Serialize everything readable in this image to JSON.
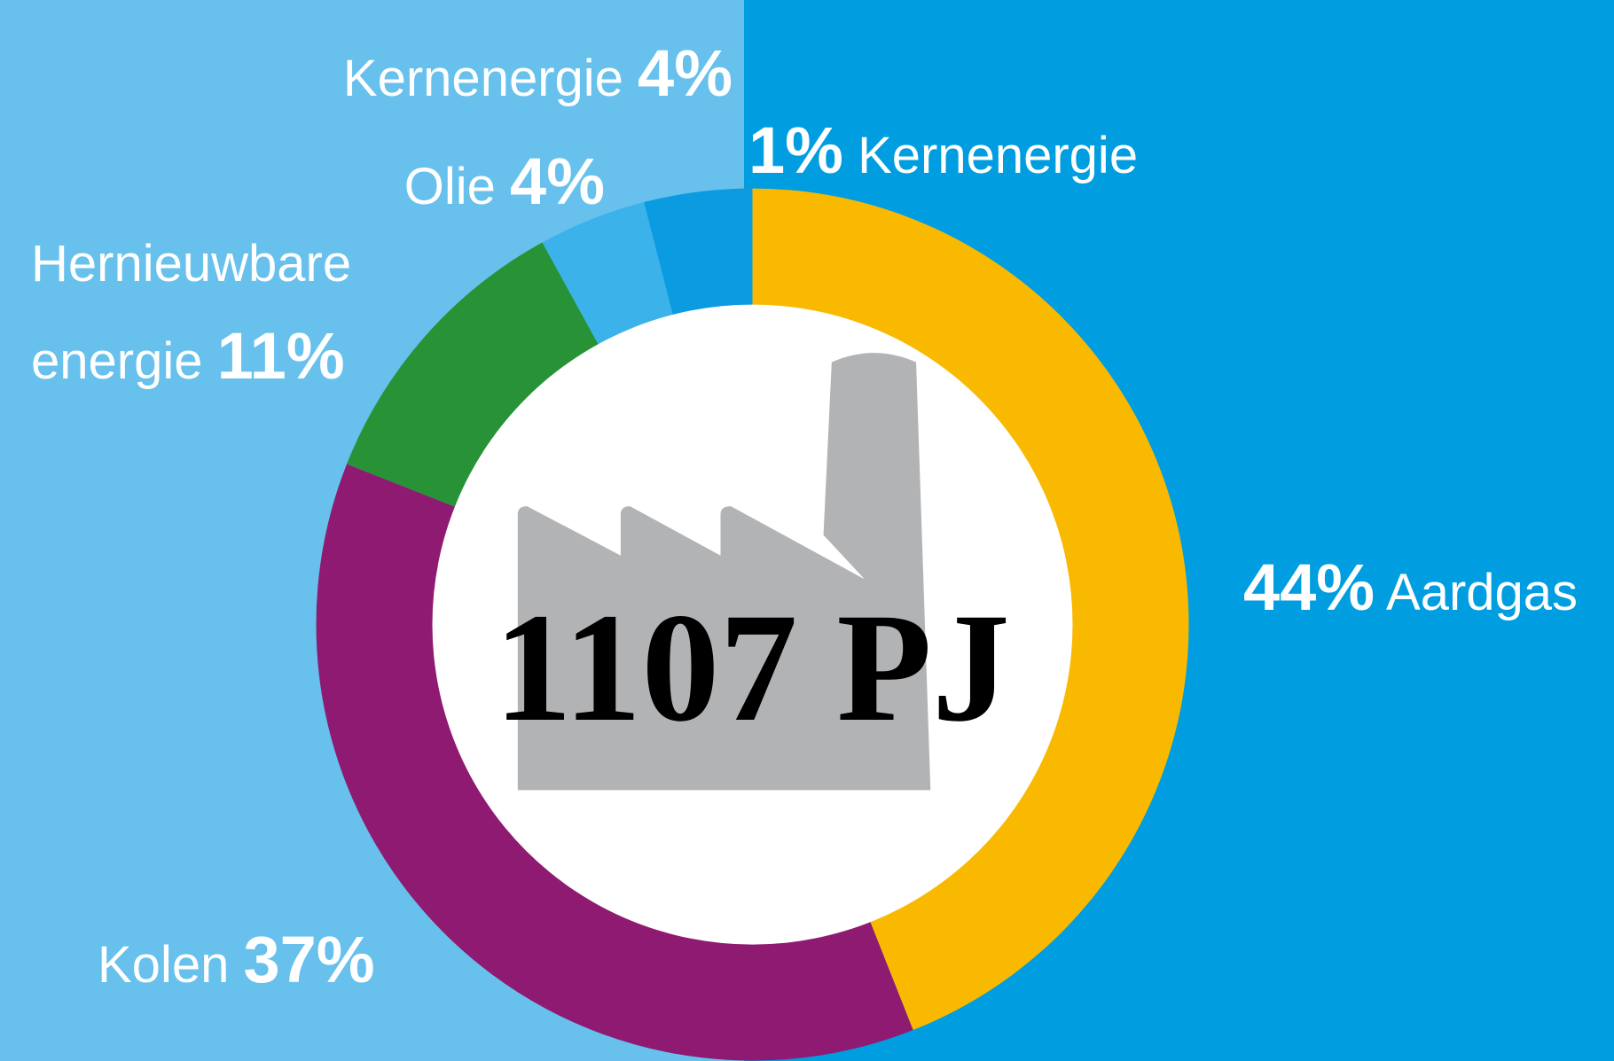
{
  "chart_data": {
    "type": "donut",
    "categories": [
      "Kernenergie",
      "Aardgas",
      "Kolen",
      "Hernieuwbare energie",
      "Olie",
      "Kernenergie"
    ],
    "values": [
      1,
      44,
      37,
      11,
      4,
      4
    ],
    "value_labels": [
      "1%",
      "44%",
      "37%",
      "11%",
      "4%",
      "4%"
    ],
    "colors": [
      "#e8680c",
      "#f9b900",
      "#8f1a71",
      "#279236",
      "#3bb3ea",
      "#0a9be0"
    ],
    "center_label": "1107 PJ"
  }
}
